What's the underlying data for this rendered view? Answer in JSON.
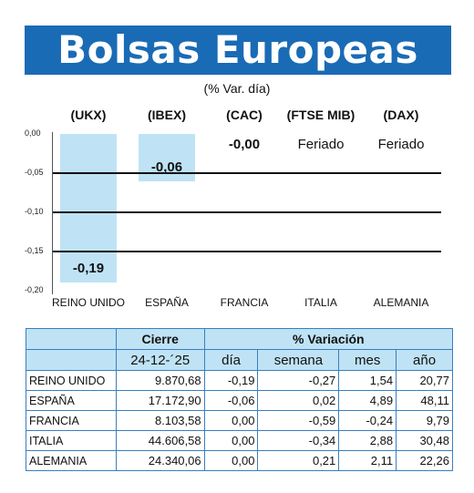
{
  "header": {
    "title": "Bolsas Europeas"
  },
  "chart_data": {
    "type": "bar",
    "subtitle": "(% Var. día)",
    "categories": [
      "REINO UNIDO",
      "ESPAÑA",
      "FRANCIA",
      "ITALIA",
      "ALEMANIA"
    ],
    "index_labels": [
      "(UKX)",
      "(IBEX)",
      "(CAC)",
      "(FTSE MIB)",
      "(DAX)"
    ],
    "values": [
      -0.19,
      -0.06,
      0.0,
      null,
      null
    ],
    "value_labels": [
      "-0,19",
      "-0,06",
      "-0,00",
      "Feriado",
      "Feriado"
    ],
    "yticks": [
      "0,00",
      "-0,05",
      "-0,10",
      "-0,15",
      "-0,20"
    ],
    "ylim": [
      -0.2,
      0.0
    ],
    "grid": true,
    "bar_color": "#bfe3f5"
  },
  "table": {
    "header_cierre": "Cierre",
    "header_variacion": "% Variación",
    "date": "24-12-´25",
    "col_dia": "día",
    "col_semana": "semana",
    "col_mes": "mes",
    "col_anio": "año",
    "rows": [
      {
        "name": "REINO UNIDO",
        "cierre": "9.870,68",
        "dia": "-0,19",
        "semana": "-0,27",
        "mes": "1,54",
        "anio": "20,77"
      },
      {
        "name": "ESPAÑA",
        "cierre": "17.172,90",
        "dia": "-0,06",
        "semana": "0,02",
        "mes": "4,89",
        "anio": "48,11"
      },
      {
        "name": "FRANCIA",
        "cierre": "8.103,58",
        "dia": "0,00",
        "semana": "-0,59",
        "mes": "-0,24",
        "anio": "9,79"
      },
      {
        "name": "ITALIA",
        "cierre": "44.606,58",
        "dia": "0,00",
        "semana": "-0,34",
        "mes": "2,88",
        "anio": "30,48"
      },
      {
        "name": "ALEMANIA",
        "cierre": "24.340,06",
        "dia": "0,00",
        "semana": "0,21",
        "mes": "2,11",
        "anio": "22,26"
      }
    ]
  },
  "colors": {
    "header_bg": "#1a6bb5",
    "accent": "#bfe3f5",
    "table_border": "#3a7fbf"
  }
}
